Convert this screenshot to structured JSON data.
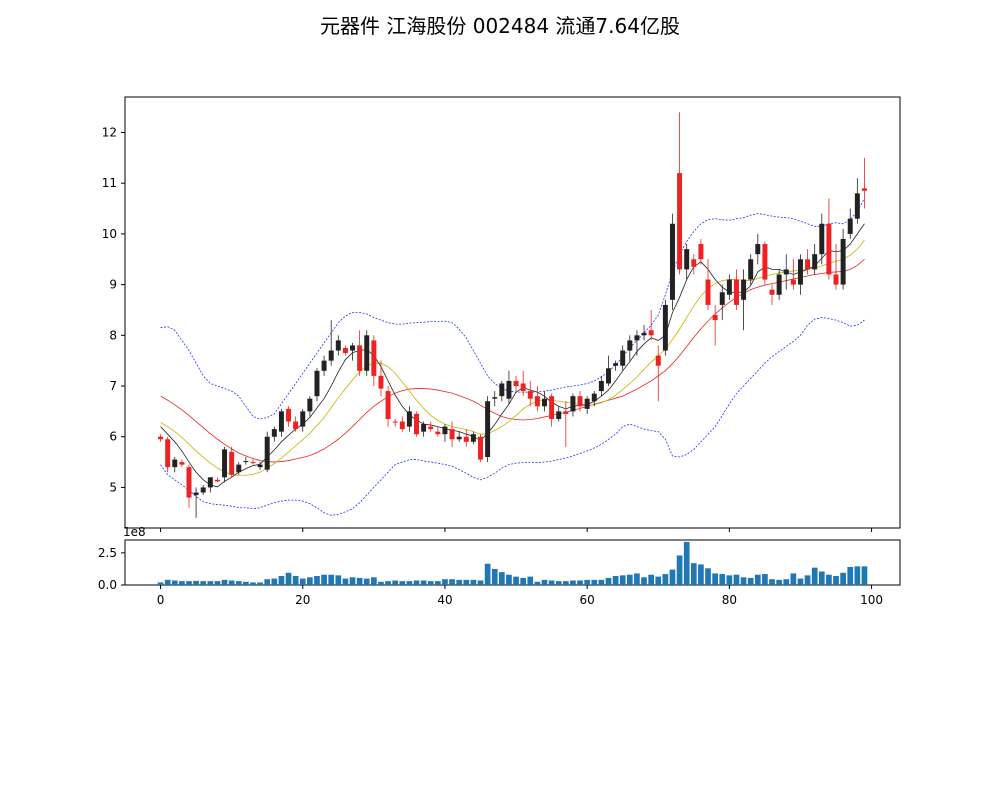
{
  "title": "元器件 江海股份 002484 流通7.64亿股",
  "chart_data": [
    {
      "type": "candlestick",
      "ylim": [
        4.2,
        12.7
      ],
      "xlim": [
        -5,
        104
      ],
      "y_ticks": [
        "5",
        "6",
        "7",
        "8",
        "9",
        "10",
        "11",
        "12"
      ],
      "up_color": "#222222",
      "down_color": "#ee2222",
      "ohlc": [
        [
          6.0,
          6.05,
          5.9,
          5.95
        ],
        [
          5.95,
          6.0,
          5.3,
          5.4
        ],
        [
          5.4,
          5.6,
          5.3,
          5.55
        ],
        [
          5.5,
          5.55,
          5.4,
          5.45
        ],
        [
          5.4,
          5.45,
          4.6,
          4.8
        ],
        [
          4.85,
          5.0,
          4.4,
          4.9
        ],
        [
          4.9,
          5.05,
          4.85,
          5.0
        ],
        [
          5.0,
          5.2,
          4.9,
          5.2
        ],
        [
          5.15,
          5.2,
          5.1,
          5.12
        ],
        [
          5.2,
          5.8,
          5.1,
          5.75
        ],
        [
          5.7,
          5.8,
          5.2,
          5.25
        ],
        [
          5.3,
          5.5,
          5.25,
          5.45
        ],
        [
          5.5,
          5.6,
          5.45,
          5.52
        ],
        [
          5.5,
          5.55,
          5.45,
          5.48
        ],
        [
          5.4,
          5.5,
          5.35,
          5.45
        ],
        [
          5.35,
          6.1,
          5.3,
          6.0
        ],
        [
          6.0,
          6.2,
          5.9,
          6.15
        ],
        [
          6.1,
          6.55,
          6.0,
          6.5
        ],
        [
          6.55,
          6.6,
          6.2,
          6.3
        ],
        [
          6.3,
          6.4,
          6.1,
          6.15
        ],
        [
          6.2,
          6.55,
          6.1,
          6.5
        ],
        [
          6.5,
          6.8,
          6.4,
          6.75
        ],
        [
          6.8,
          7.35,
          6.7,
          7.3
        ],
        [
          7.3,
          7.6,
          7.2,
          7.5
        ],
        [
          7.5,
          8.3,
          7.4,
          7.7
        ],
        [
          7.7,
          8.0,
          7.6,
          7.9
        ],
        [
          7.75,
          7.8,
          7.6,
          7.65
        ],
        [
          7.7,
          7.85,
          7.5,
          7.8
        ],
        [
          7.8,
          8.1,
          7.2,
          7.3
        ],
        [
          7.3,
          8.1,
          7.2,
          8.0
        ],
        [
          7.9,
          8.0,
          7.0,
          7.2
        ],
        [
          7.2,
          7.5,
          6.8,
          6.95
        ],
        [
          6.9,
          7.0,
          6.2,
          6.35
        ],
        [
          6.3,
          6.35,
          6.2,
          6.28
        ],
        [
          6.3,
          6.4,
          6.1,
          6.15
        ],
        [
          6.2,
          6.6,
          6.1,
          6.5
        ],
        [
          6.45,
          6.5,
          6.0,
          6.05
        ],
        [
          6.1,
          6.3,
          6.0,
          6.25
        ],
        [
          6.2,
          6.3,
          6.1,
          6.15
        ],
        [
          6.1,
          6.2,
          6.0,
          6.05
        ],
        [
          6.05,
          6.25,
          5.9,
          6.2
        ],
        [
          6.15,
          6.3,
          5.8,
          5.95
        ],
        [
          5.95,
          6.1,
          5.9,
          6.0
        ],
        [
          6.0,
          6.15,
          5.8,
          5.9
        ],
        [
          5.9,
          6.1,
          5.85,
          6.05
        ],
        [
          6.0,
          6.05,
          5.5,
          5.55
        ],
        [
          5.6,
          6.8,
          5.5,
          6.7
        ],
        [
          6.75,
          6.9,
          6.6,
          6.78
        ],
        [
          6.8,
          7.1,
          6.7,
          7.05
        ],
        [
          6.75,
          7.3,
          6.65,
          7.1
        ],
        [
          7.1,
          7.2,
          6.9,
          7.0
        ],
        [
          7.05,
          7.3,
          6.8,
          6.9
        ],
        [
          6.9,
          7.1,
          6.6,
          6.75
        ],
        [
          6.8,
          7.0,
          6.5,
          6.6
        ],
        [
          6.6,
          6.9,
          6.5,
          6.75
        ],
        [
          6.8,
          6.85,
          6.2,
          6.35
        ],
        [
          6.35,
          6.6,
          6.3,
          6.5
        ],
        [
          6.5,
          6.7,
          5.8,
          6.45
        ],
        [
          6.5,
          6.85,
          6.4,
          6.8
        ],
        [
          6.8,
          6.9,
          6.5,
          6.6
        ],
        [
          6.55,
          6.8,
          6.45,
          6.75
        ],
        [
          6.7,
          6.9,
          6.6,
          6.85
        ],
        [
          6.9,
          7.2,
          6.8,
          7.1
        ],
        [
          7.05,
          7.6,
          7.0,
          7.35
        ],
        [
          7.4,
          7.5,
          7.3,
          7.45
        ],
        [
          7.4,
          7.8,
          7.3,
          7.7
        ],
        [
          7.7,
          8.0,
          7.5,
          7.9
        ],
        [
          7.9,
          8.1,
          7.6,
          8.0
        ],
        [
          8.0,
          8.2,
          7.9,
          8.05
        ],
        [
          8.1,
          8.5,
          7.9,
          8.0
        ],
        [
          7.6,
          7.8,
          6.7,
          7.4
        ],
        [
          7.7,
          8.7,
          7.6,
          8.6
        ],
        [
          8.7,
          10.4,
          8.5,
          10.2
        ],
        [
          11.2,
          12.4,
          9.2,
          9.3
        ],
        [
          9.3,
          9.8,
          9.1,
          9.7
        ],
        [
          9.5,
          9.6,
          9.2,
          9.35
        ],
        [
          9.8,
          9.9,
          9.4,
          9.5
        ],
        [
          9.1,
          9.5,
          8.5,
          8.6
        ],
        [
          8.4,
          8.6,
          7.8,
          8.3
        ],
        [
          8.6,
          9.0,
          8.3,
          8.85
        ],
        [
          8.8,
          9.2,
          8.7,
          9.1
        ],
        [
          9.1,
          9.3,
          8.5,
          8.6
        ],
        [
          8.7,
          9.3,
          8.1,
          9.1
        ],
        [
          9.1,
          9.6,
          9.0,
          9.5
        ],
        [
          9.6,
          10.0,
          9.4,
          9.8
        ],
        [
          9.8,
          9.85,
          9.0,
          9.1
        ],
        [
          8.9,
          9.0,
          8.6,
          8.8
        ],
        [
          8.8,
          9.3,
          8.7,
          9.2
        ],
        [
          9.2,
          9.6,
          8.9,
          9.3
        ],
        [
          9.1,
          9.5,
          8.9,
          9.0
        ],
        [
          9.0,
          9.6,
          8.8,
          9.5
        ],
        [
          9.5,
          9.7,
          9.2,
          9.3
        ],
        [
          9.3,
          9.8,
          9.2,
          9.6
        ],
        [
          9.6,
          10.4,
          9.4,
          10.2
        ],
        [
          10.2,
          10.7,
          9.1,
          9.2
        ],
        [
          9.2,
          9.8,
          8.9,
          9.0
        ],
        [
          9.0,
          10.1,
          8.9,
          9.9
        ],
        [
          10.0,
          10.5,
          9.9,
          10.3
        ],
        [
          10.3,
          11.1,
          10.2,
          10.8
        ],
        [
          10.9,
          11.5,
          10.5,
          10.85
        ]
      ],
      "ma5": [
        6.2,
        6.05,
        5.9,
        5.72,
        5.5,
        5.3,
        5.15,
        5.05,
        5.01,
        5.12,
        5.2,
        5.3,
        5.37,
        5.43,
        5.46,
        5.6,
        5.74,
        5.9,
        6.03,
        6.15,
        6.25,
        6.38,
        6.57,
        6.75,
        7.0,
        7.28,
        7.52,
        7.66,
        7.7,
        7.72,
        7.6,
        7.38,
        7.1,
        6.82,
        6.6,
        6.43,
        6.33,
        6.25,
        6.23,
        6.2,
        6.16,
        6.13,
        6.1,
        6.05,
        6.01,
        5.92,
        6.07,
        6.24,
        6.45,
        6.64,
        6.88,
        6.97,
        6.92,
        6.88,
        6.8,
        6.68,
        6.6,
        6.55,
        6.6,
        6.62,
        6.63,
        6.7,
        6.8,
        6.92,
        7.1,
        7.3,
        7.48,
        7.68,
        7.83,
        7.95,
        7.9,
        8.0,
        8.45,
        8.75,
        9.1,
        9.35,
        9.45,
        9.3,
        9.1,
        8.95,
        8.85,
        8.85,
        8.85,
        8.98,
        9.25,
        9.35,
        9.3,
        9.3,
        9.25,
        9.2,
        9.25,
        9.3,
        9.37,
        9.52,
        9.67,
        9.65,
        9.67,
        9.8,
        10.0,
        10.2
      ],
      "ma10": [
        6.28,
        6.2,
        6.1,
        5.99,
        5.85,
        5.72,
        5.6,
        5.48,
        5.38,
        5.31,
        5.25,
        5.24,
        5.24,
        5.26,
        5.3,
        5.38,
        5.47,
        5.58,
        5.7,
        5.82,
        5.94,
        6.07,
        6.22,
        6.38,
        6.57,
        6.77,
        6.95,
        7.12,
        7.28,
        7.4,
        7.45,
        7.45,
        7.38,
        7.25,
        7.08,
        6.9,
        6.72,
        6.56,
        6.42,
        6.32,
        6.25,
        6.2,
        6.17,
        6.14,
        6.1,
        6.05,
        6.06,
        6.12,
        6.2,
        6.3,
        6.42,
        6.55,
        6.64,
        6.7,
        6.73,
        6.72,
        6.7,
        6.68,
        6.66,
        6.64,
        6.62,
        6.63,
        6.67,
        6.73,
        6.82,
        6.93,
        7.05,
        7.18,
        7.33,
        7.47,
        7.6,
        7.72,
        7.92,
        8.12,
        8.35,
        8.58,
        8.78,
        8.92,
        9.02,
        9.08,
        9.1,
        9.1,
        9.08,
        9.08,
        9.12,
        9.17,
        9.2,
        9.23,
        9.25,
        9.27,
        9.28,
        9.3,
        9.33,
        9.37,
        9.42,
        9.46,
        9.5,
        9.58,
        9.7,
        9.88
      ],
      "ma20": [
        6.8,
        6.72,
        6.63,
        6.53,
        6.42,
        6.3,
        6.18,
        6.06,
        5.95,
        5.85,
        5.76,
        5.68,
        5.62,
        5.57,
        5.53,
        5.51,
        5.5,
        5.51,
        5.53,
        5.56,
        5.59,
        5.63,
        5.69,
        5.76,
        5.85,
        5.95,
        6.07,
        6.2,
        6.34,
        6.48,
        6.6,
        6.7,
        6.79,
        6.86,
        6.91,
        6.94,
        6.95,
        6.95,
        6.94,
        6.92,
        6.89,
        6.86,
        6.81,
        6.76,
        6.7,
        6.62,
        6.54,
        6.46,
        6.4,
        6.36,
        6.34,
        6.33,
        6.34,
        6.36,
        6.39,
        6.42,
        6.45,
        6.48,
        6.52,
        6.56,
        6.6,
        6.64,
        6.68,
        6.72,
        6.76,
        6.8,
        6.87,
        6.94,
        7.02,
        7.1,
        7.2,
        7.3,
        7.44,
        7.6,
        7.78,
        7.96,
        8.13,
        8.28,
        8.42,
        8.54,
        8.65,
        8.75,
        8.83,
        8.9,
        8.95,
        8.99,
        9.02,
        9.05,
        9.08,
        9.11,
        9.14,
        9.17,
        9.2,
        9.22,
        9.24,
        9.25,
        9.26,
        9.3,
        9.38,
        9.5
      ],
      "boll_upper": [
        8.15,
        8.17,
        8.1,
        7.9,
        7.7,
        7.45,
        7.2,
        7.05,
        7.0,
        6.95,
        6.9,
        6.8,
        6.6,
        6.4,
        6.35,
        6.38,
        6.45,
        6.65,
        6.85,
        7.05,
        7.25,
        7.45,
        7.65,
        7.85,
        8.05,
        8.25,
        8.38,
        8.45,
        8.45,
        8.42,
        8.35,
        8.3,
        8.25,
        8.22,
        8.22,
        8.24,
        8.25,
        8.26,
        8.27,
        8.27,
        8.28,
        8.25,
        8.12,
        7.95,
        7.7,
        7.45,
        7.2,
        7.05,
        6.95,
        6.9,
        6.88,
        6.88,
        6.88,
        6.88,
        6.9,
        6.92,
        6.95,
        6.98,
        7.0,
        7.02,
        7.05,
        7.1,
        7.18,
        7.28,
        7.42,
        7.58,
        7.75,
        7.9,
        8.05,
        8.2,
        8.4,
        8.8,
        9.25,
        9.6,
        9.85,
        10.05,
        10.2,
        10.28,
        10.3,
        10.28,
        10.27,
        10.3,
        10.32,
        10.37,
        10.4,
        10.38,
        10.35,
        10.33,
        10.32,
        10.3,
        10.25,
        10.2,
        10.15,
        10.15,
        10.2,
        10.22,
        10.2,
        10.28,
        10.45,
        10.7
      ],
      "boll_lower": [
        5.45,
        5.25,
        5.15,
        5.05,
        4.95,
        4.82,
        4.72,
        4.68,
        4.66,
        4.65,
        4.63,
        4.6,
        4.6,
        4.58,
        4.6,
        4.65,
        4.7,
        4.73,
        4.75,
        4.75,
        4.73,
        4.68,
        4.6,
        4.5,
        4.45,
        4.47,
        4.52,
        4.58,
        4.7,
        4.85,
        5.0,
        5.15,
        5.3,
        5.45,
        5.5,
        5.55,
        5.55,
        5.52,
        5.5,
        5.48,
        5.45,
        5.42,
        5.35,
        5.28,
        5.2,
        5.15,
        5.2,
        5.28,
        5.38,
        5.45,
        5.48,
        5.49,
        5.49,
        5.49,
        5.5,
        5.52,
        5.55,
        5.58,
        5.62,
        5.67,
        5.72,
        5.78,
        5.85,
        5.95,
        6.05,
        6.2,
        6.25,
        6.2,
        6.15,
        6.12,
        6.1,
        5.95,
        5.62,
        5.6,
        5.65,
        5.75,
        5.9,
        6.05,
        6.2,
        6.42,
        6.65,
        6.85,
        7.0,
        7.15,
        7.3,
        7.45,
        7.58,
        7.68,
        7.78,
        7.88,
        8.0,
        8.2,
        8.32,
        8.35,
        8.33,
        8.3,
        8.25,
        8.18,
        8.2,
        8.3
      ]
    },
    {
      "type": "bar",
      "ylim": [
        0,
        3.5
      ],
      "y_ticks": [
        "0.0",
        "2.5"
      ],
      "scale_label": "1e8",
      "x_ticks": [
        "0",
        "20",
        "40",
        "60",
        "80",
        "100"
      ],
      "x_tick_values": [
        0,
        20,
        40,
        60,
        80,
        100
      ],
      "bar_color": "#1f77b4",
      "volume": [
        0.2,
        0.4,
        0.35,
        0.3,
        0.3,
        0.32,
        0.3,
        0.3,
        0.3,
        0.4,
        0.35,
        0.3,
        0.25,
        0.2,
        0.2,
        0.45,
        0.5,
        0.7,
        0.95,
        0.7,
        0.5,
        0.6,
        0.7,
        0.8,
        0.8,
        0.75,
        0.5,
        0.6,
        0.55,
        0.5,
        0.6,
        0.25,
        0.3,
        0.35,
        0.3,
        0.3,
        0.35,
        0.35,
        0.3,
        0.3,
        0.45,
        0.45,
        0.4,
        0.4,
        0.4,
        0.35,
        1.65,
        1.25,
        1.0,
        0.8,
        0.65,
        0.55,
        0.65,
        0.25,
        0.4,
        0.35,
        0.3,
        0.3,
        0.35,
        0.35,
        0.4,
        0.4,
        0.4,
        0.55,
        0.7,
        0.75,
        0.8,
        0.9,
        0.6,
        0.8,
        0.65,
        0.85,
        1.2,
        2.3,
        3.35,
        1.7,
        1.6,
        1.3,
        0.9,
        0.85,
        0.75,
        0.8,
        0.6,
        0.55,
        0.8,
        0.85,
        0.45,
        0.4,
        0.45,
        0.9,
        0.5,
        0.75,
        1.35,
        1.05,
        0.8,
        0.7,
        0.95,
        1.4,
        1.45,
        1.45
      ]
    }
  ]
}
